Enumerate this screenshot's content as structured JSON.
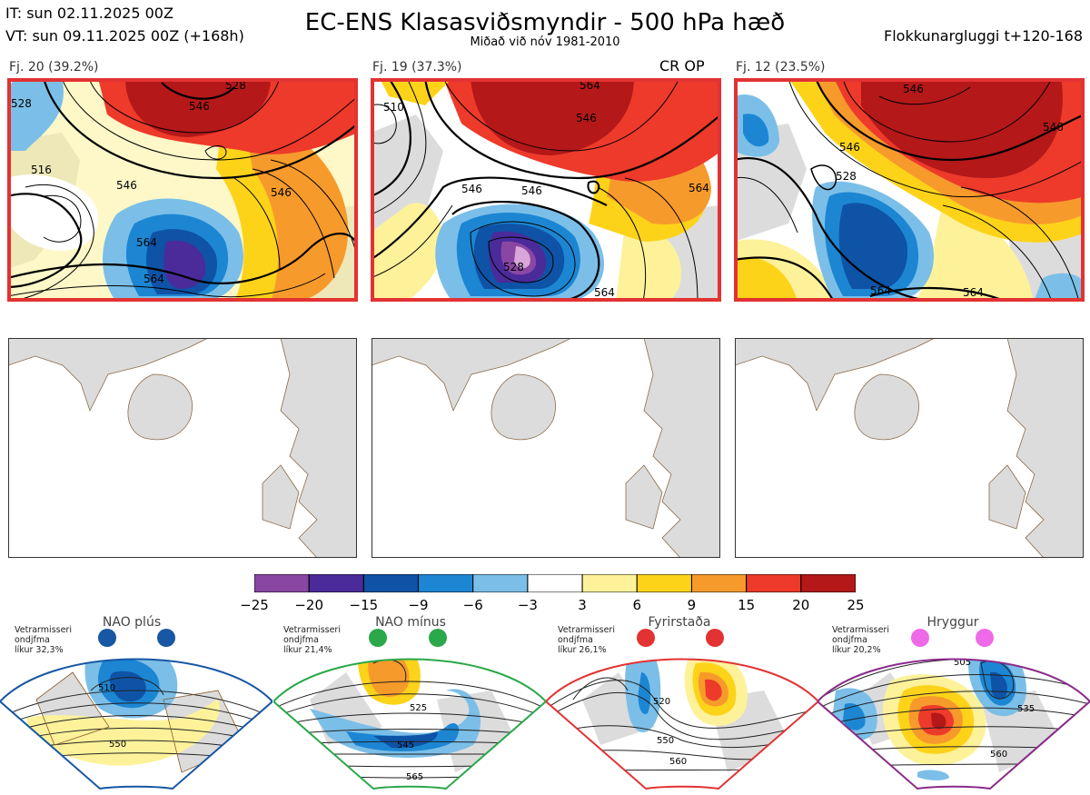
{
  "header": {
    "initial_time": "IT: sun 02.11.2025 00Z",
    "valid_time": "VT: sun 09.11.2025 00Z  (+168h)",
    "title": "EC-ENS Klasasviðsmyndir - 500 hPa hæð",
    "subtitle": "Miðað við nóv 1981-2010",
    "cluster_window": "Flokkunargluggi t+120-168"
  },
  "panels": [
    {
      "label": "Fj. 20 (39.2%)",
      "badge": "",
      "contours": [
        "528",
        "516",
        "546",
        "546",
        "564",
        "564",
        "546",
        "528"
      ]
    },
    {
      "label": "Fj. 19 (37.3%)",
      "badge": "CR OP",
      "contours": [
        "510",
        "546",
        "546",
        "528",
        "546",
        "564",
        "564",
        "564"
      ]
    },
    {
      "label": "Fj. 12 (23.5%)",
      "badge": "",
      "contours": [
        "546",
        "546",
        "528",
        "546",
        "564",
        "564"
      ]
    }
  ],
  "colorbar": {
    "ticks": [
      "−25",
      "−20",
      "−15",
      "−9",
      "−6",
      "−3",
      "3",
      "6",
      "9",
      "15",
      "20",
      "25"
    ],
    "colors": [
      "#8a46a3",
      "#4b2a9a",
      "#0e53a6",
      "#1c86d3",
      "#7bbfe8",
      "#ffffff",
      "#fdf29a",
      "#fdd31a",
      "#f79a2c",
      "#ed3a2a",
      "#b41819"
    ]
  },
  "regimes": [
    {
      "name": "NAO plús",
      "season": "Vetrarmisseri",
      "freq_label": "ondjfma",
      "likelihood": "líkur 32,3%",
      "color": "#1757a3",
      "dot": "#1757a3",
      "contours": [
        "510",
        "550"
      ]
    },
    {
      "name": "NAO mínus",
      "season": "Vetrarmisseri",
      "freq_label": "ondjfma",
      "likelihood": "líkur 21,4%",
      "color": "#2aa84a",
      "dot": "#2aa84a",
      "contours": [
        "525",
        "545",
        "565"
      ]
    },
    {
      "name": "Fyrirstaða",
      "season": "Vetrarmisseri",
      "freq_label": "ondjfma",
      "likelihood": "líkur 26,1%",
      "color": "#e33232",
      "dot": "#e33232",
      "contours": [
        "520",
        "550",
        "560"
      ]
    },
    {
      "name": "Hryggur",
      "season": "Vetrarmisseri",
      "freq_label": "ondjfma",
      "likelihood": "líkur 20,2%",
      "color": "#8a2a8a",
      "dot": "#ee6ae8",
      "contours": [
        "505",
        "535",
        "560"
      ]
    }
  ]
}
